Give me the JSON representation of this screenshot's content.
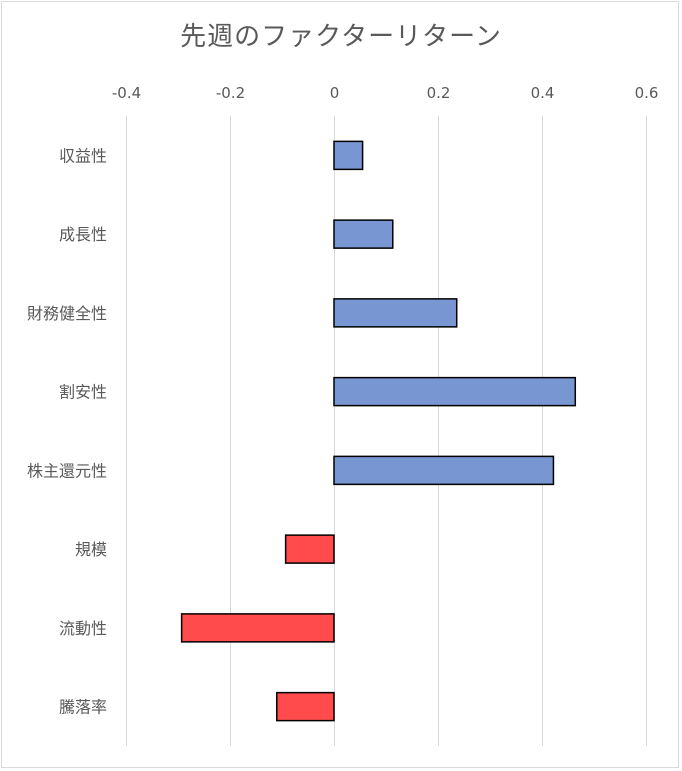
{
  "chart_data": {
    "type": "bar",
    "orientation": "horizontal",
    "title": "先週のファクターリターン",
    "xlabel": "",
    "ylabel": "",
    "xlim": [
      -0.4,
      0.6
    ],
    "xticks": [
      -0.4,
      -0.2,
      0,
      0.2,
      0.4,
      0.6
    ],
    "xtick_labels": [
      "-0.4",
      "-0.2",
      "0",
      "0.2",
      "0.4",
      "0.6"
    ],
    "x_axis_position": "top",
    "grid": true,
    "legend": "none",
    "categories": [
      "収益性",
      "成長性",
      "財務健全性",
      "割安性",
      "株主還元性",
      "規模",
      "流動性",
      "騰落率"
    ],
    "values": [
      0.055,
      0.113,
      0.236,
      0.464,
      0.422,
      -0.093,
      -0.293,
      -0.11
    ],
    "colors": {
      "positive": "#7897d2",
      "negative": "#ff4b4b",
      "bar_outline": "#000000",
      "grid": "#d9d9d9",
      "text": "#595959"
    }
  }
}
